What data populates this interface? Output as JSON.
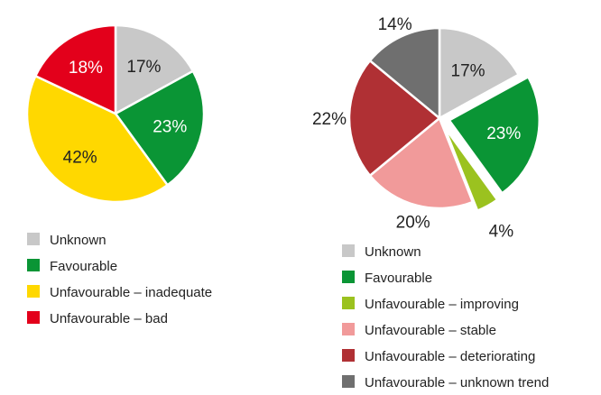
{
  "chart_data": [
    {
      "type": "pie",
      "slices": [
        {
          "label": "Unknown",
          "value": 17,
          "value_label": "17%",
          "color": "#c8c8c8",
          "text_color": "#222222"
        },
        {
          "label": "Favourable",
          "value": 23,
          "value_label": "23%",
          "color": "#0a9535",
          "text_color": "#ffffff"
        },
        {
          "label": "Unfavourable – inadequate",
          "value": 42,
          "value_label": "42%",
          "color": "#ffd800",
          "text_color": "#222222"
        },
        {
          "label": "Unfavourable – bad",
          "value": 18,
          "value_label": "18%",
          "color": "#e3001b",
          "text_color": "#ffffff"
        }
      ],
      "legend_position": "bottom-left"
    },
    {
      "type": "pie",
      "slices": [
        {
          "label": "Unknown",
          "value": 17,
          "value_label": "17%",
          "color": "#c8c8c8",
          "text_color": "#222222"
        },
        {
          "label": "Favourable",
          "value": 23,
          "value_label": "23%",
          "color": "#0a9535",
          "text_color": "#ffffff"
        },
        {
          "label": "Unfavourable – improving",
          "value": 4,
          "value_label": "4%",
          "color": "#9bc21f",
          "text_color": "#222222"
        },
        {
          "label": "Unfavourable – stable",
          "value": 20,
          "value_label": "20%",
          "color": "#f19a9a",
          "text_color": "#222222"
        },
        {
          "label": "Unfavourable – deteriorating",
          "value": 22,
          "value_label": "22%",
          "color": "#b03034",
          "text_color": "#222222"
        },
        {
          "label": "Unfavourable – unknown trend",
          "value": 14,
          "value_label": "14%",
          "color": "#6f6f6f",
          "text_color": "#222222"
        }
      ],
      "exploded_slices": [
        "Favourable",
        "Unfavourable – improving"
      ],
      "legend_position": "bottom"
    }
  ]
}
